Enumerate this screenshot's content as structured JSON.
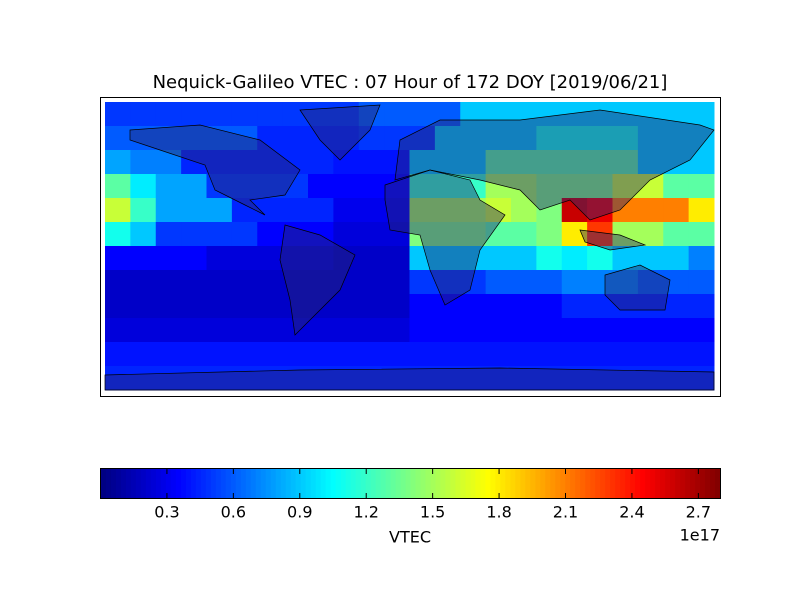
{
  "chart_data": {
    "type": "heatmap",
    "title": "Nequick-Galileo VTEC : 07 Hour of 172 DOY [2019/06/21]",
    "colormap": "jet",
    "clim": [
      0.0,
      2.8
    ],
    "colorbar_ticks": [
      0.3,
      0.6,
      0.9,
      1.2,
      1.5,
      1.8,
      2.1,
      2.4,
      2.7
    ],
    "colorbar_label": "VTEC",
    "colorbar_offset_label": "1e17",
    "values": [
      [
        0.5,
        0.5,
        0.5,
        0.5,
        0.5,
        0.5,
        0.5,
        0.5,
        0.5,
        0.5,
        0.6,
        0.6,
        0.6,
        0.6,
        0.9,
        0.9,
        0.9,
        0.9,
        0.9,
        0.9,
        0.9,
        0.9,
        0.9,
        0.9
      ],
      [
        0.6,
        0.6,
        0.6,
        0.6,
        0.6,
        0.6,
        0.45,
        0.45,
        0.45,
        0.45,
        0.5,
        0.5,
        0.5,
        0.9,
        0.9,
        0.9,
        0.9,
        1.1,
        1.1,
        1.1,
        1.1,
        0.9,
        0.9,
        0.9
      ],
      [
        0.8,
        0.7,
        0.7,
        0.45,
        0.45,
        0.45,
        0.45,
        0.45,
        0.45,
        0.4,
        0.4,
        0.4,
        0.9,
        0.9,
        0.9,
        1.3,
        1.3,
        1.3,
        1.3,
        1.3,
        1.3,
        0.9,
        0.9,
        0.9
      ],
      [
        1.3,
        1.0,
        0.8,
        0.8,
        0.5,
        0.5,
        0.5,
        0.5,
        0.35,
        0.35,
        0.35,
        0.35,
        1.2,
        1.2,
        1.2,
        1.5,
        1.5,
        1.4,
        1.4,
        1.4,
        1.6,
        1.6,
        1.3,
        1.3
      ],
      [
        1.6,
        1.2,
        0.8,
        0.8,
        0.8,
        0.45,
        0.45,
        0.45,
        0.45,
        0.3,
        0.3,
        0.3,
        1.5,
        1.5,
        1.5,
        1.6,
        1.5,
        1.4,
        2.6,
        2.5,
        2.1,
        2.1,
        2.1,
        1.8
      ],
      [
        1.1,
        0.9,
        0.5,
        0.5,
        0.5,
        0.5,
        0.35,
        0.35,
        0.35,
        0.25,
        0.25,
        0.25,
        1.4,
        1.4,
        1.4,
        1.3,
        1.3,
        1.4,
        1.8,
        2.3,
        1.5,
        1.5,
        1.3,
        1.3
      ],
      [
        0.35,
        0.35,
        0.35,
        0.35,
        0.25,
        0.25,
        0.25,
        0.25,
        0.25,
        0.2,
        0.2,
        0.2,
        0.9,
        0.9,
        0.9,
        0.9,
        0.9,
        1.1,
        1.0,
        1.1,
        0.9,
        0.9,
        0.9,
        0.7
      ],
      [
        0.2,
        0.2,
        0.2,
        0.2,
        0.2,
        0.2,
        0.2,
        0.2,
        0.2,
        0.2,
        0.2,
        0.2,
        0.5,
        0.5,
        0.5,
        0.6,
        0.6,
        0.6,
        0.7,
        0.7,
        0.7,
        0.6,
        0.6,
        0.6
      ],
      [
        0.2,
        0.2,
        0.2,
        0.2,
        0.2,
        0.2,
        0.2,
        0.2,
        0.2,
        0.2,
        0.2,
        0.2,
        0.35,
        0.35,
        0.35,
        0.35,
        0.35,
        0.35,
        0.45,
        0.45,
        0.45,
        0.45,
        0.45,
        0.45
      ],
      [
        0.25,
        0.25,
        0.25,
        0.25,
        0.25,
        0.25,
        0.25,
        0.25,
        0.25,
        0.25,
        0.25,
        0.25,
        0.35,
        0.35,
        0.35,
        0.35,
        0.35,
        0.35,
        0.35,
        0.35,
        0.35,
        0.35,
        0.35,
        0.35
      ],
      [
        0.4,
        0.4,
        0.4,
        0.4,
        0.4,
        0.4,
        0.4,
        0.4,
        0.4,
        0.4,
        0.4,
        0.4,
        0.4,
        0.4,
        0.4,
        0.4,
        0.4,
        0.4,
        0.4,
        0.4,
        0.4,
        0.4,
        0.4,
        0.4
      ],
      [
        0.45,
        0.45,
        0.45,
        0.45,
        0.45,
        0.45,
        0.45,
        0.45,
        0.45,
        0.45,
        0.45,
        0.45,
        0.45,
        0.45,
        0.45,
        0.45,
        0.45,
        0.45,
        0.45,
        0.45,
        0.45,
        0.45,
        0.45,
        0.45
      ]
    ]
  }
}
